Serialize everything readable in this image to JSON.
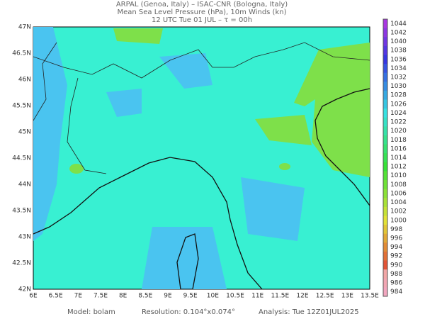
{
  "header": {
    "lines": [
      "ARPAL (Genoa, Italy)  –  ISAC-CNR (Bologna, Italy)",
      "Mean Sea Level Pressure (hPa), 10m Winds (kn)",
      "12 UTC Tue 01 JUL  –  τ = 00h"
    ]
  },
  "map": {
    "x_labels": [
      "6E",
      "6.5E",
      "7E",
      "7.5E",
      "8E",
      "8.5E",
      "9E",
      "9.5E",
      "10E",
      "10.5E",
      "11E",
      "11.5E",
      "12E",
      "12.5E",
      "13E",
      "13.5E"
    ],
    "y_labels": [
      "47N",
      "46.5N",
      "46N",
      "45.5N",
      "45N",
      "44.5N",
      "44N",
      "43.5N",
      "43N",
      "42.5N",
      "42N"
    ]
  },
  "colorbar": {
    "levels": [
      "1044",
      "1042",
      "1040",
      "1038",
      "1036",
      "1034",
      "1032",
      "1030",
      "1028",
      "1026",
      "1024",
      "1022",
      "1020",
      "1018",
      "1016",
      "1014",
      "1012",
      "1010",
      "1008",
      "1006",
      "1004",
      "1002",
      "1000",
      "998",
      "996",
      "994",
      "992",
      "990",
      "988",
      "986",
      "984"
    ]
  },
  "footer": {
    "model": "Model: bolam",
    "resolution": "Resolution: 0.104°x0.074°",
    "analysis": "Analysis: Tue 12Z01JUL2025"
  }
}
